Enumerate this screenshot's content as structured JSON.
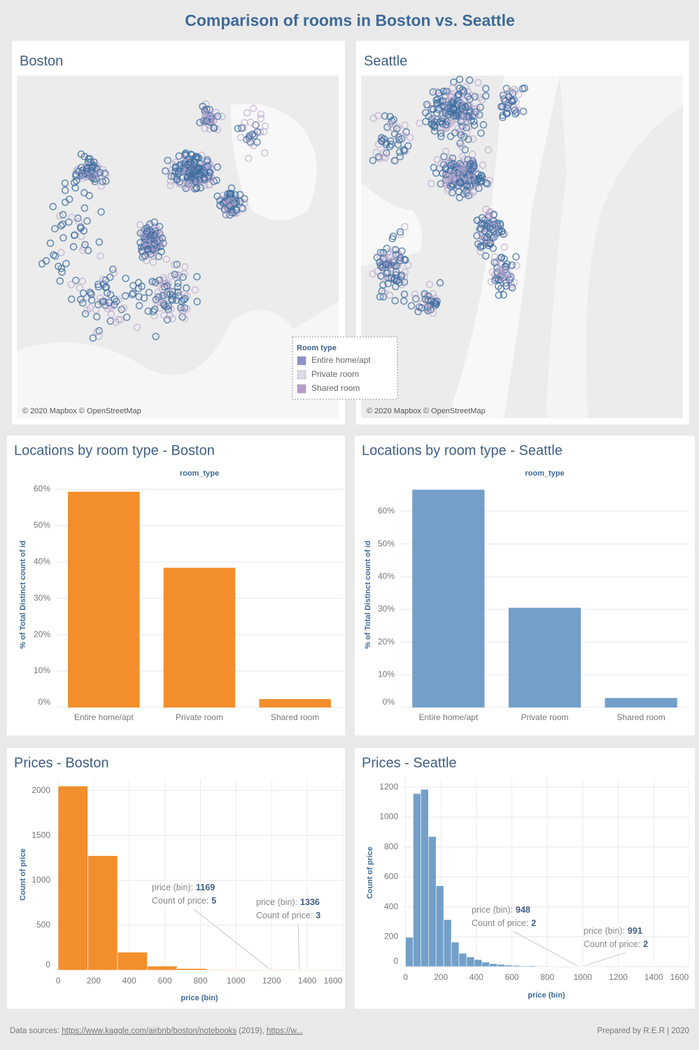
{
  "title": "Comparison of rooms in Boston vs. Seattle",
  "maps": [
    {
      "title": "Boston",
      "attribution": "© 2020 Mapbox © OpenStreetMap"
    },
    {
      "title": "Seattle",
      "attribution": "© 2020 Mapbox © OpenStreetMap"
    }
  ],
  "legend": {
    "title": "Room type",
    "items": [
      {
        "name": "Entire home/apt",
        "color": "#8d91c6"
      },
      {
        "name": "Private room",
        "color": "#dcdbe8"
      },
      {
        "name": "Shared room",
        "color": "#b79cc8"
      }
    ]
  },
  "chart_data": [
    {
      "type": "bar",
      "title": "Locations by room type - Boston",
      "x_label": "room_type",
      "y_label": "% of Total Distinct count of id",
      "categories": [
        "Entire home/apt",
        "Private room",
        "Shared room"
      ],
      "values": [
        59.3,
        38.4,
        2.3
      ],
      "color": "#f28e2b",
      "ylim": [
        0,
        62
      ],
      "yticks": [
        {
          "value": 0,
          "label": "0%"
        },
        {
          "value": 10,
          "label": "10%"
        },
        {
          "value": 20,
          "label": "20%"
        },
        {
          "value": 30,
          "label": "30%"
        },
        {
          "value": 40,
          "label": "40%"
        },
        {
          "value": 50,
          "label": "50%"
        },
        {
          "value": 60,
          "label": "60%"
        }
      ],
      "grid": true
    },
    {
      "type": "bar",
      "title": "Locations by room type - Seattle",
      "x_label": "room_type",
      "y_label": "% of Total Distinct count of id",
      "categories": [
        "Entire home/apt",
        "Private room",
        "Shared room"
      ],
      "values": [
        66.6,
        30.5,
        2.9
      ],
      "color": "#739fc9",
      "ylim": [
        0,
        69
      ],
      "yticks": [
        {
          "value": 0,
          "label": "0%"
        },
        {
          "value": 10,
          "label": "10%"
        },
        {
          "value": 20,
          "label": "20%"
        },
        {
          "value": 30,
          "label": "30%"
        },
        {
          "value": 40,
          "label": "40%"
        },
        {
          "value": 50,
          "label": "50%"
        },
        {
          "value": 60,
          "label": "60%"
        }
      ],
      "grid": true
    },
    {
      "type": "histogram",
      "title": "Prices - Boston",
      "x_label": "price (bin)",
      "y_label": "Count of price",
      "bins": [
        0,
        167,
        334,
        501,
        668,
        835,
        1002,
        1169,
        1336,
        1503
      ],
      "values": [
        2050,
        1275,
        200,
        45,
        18,
        6,
        2,
        5,
        3
      ],
      "color": "#f28e2b",
      "xlim": [
        -12,
        1600
      ],
      "xticks": [
        0,
        200,
        400,
        600,
        800,
        1000,
        1200,
        1400,
        1600
      ],
      "ylim": [
        0,
        2130
      ],
      "yticks": [
        0,
        500,
        1000,
        1500,
        2000
      ],
      "grid": true,
      "annotations": [
        {
          "bin_label": "price (bin):",
          "bin": 1169,
          "count_label": "Count of price:",
          "count": 5
        },
        {
          "bin_label": "price (bin):",
          "bin": 1336,
          "count_label": "Count of price:",
          "count": 3
        }
      ]
    },
    {
      "type": "histogram",
      "title": "Prices - Seattle",
      "x_label": "price (bin)",
      "y_label": "Count of price",
      "bins": [
        0,
        43.1,
        86.2,
        129.3,
        172.4,
        215.5,
        258.6,
        301.7,
        344.8,
        387.9,
        431,
        474.1,
        517.2,
        560.3,
        603.4,
        646.5,
        689.6,
        732.7,
        775.8,
        818.9,
        862,
        905.1,
        948.2,
        991.3,
        1034.4
      ],
      "values": [
        196,
        1157,
        1185,
        870,
        540,
        314,
        164,
        89,
        65,
        47,
        30,
        20,
        15,
        10,
        8,
        5,
        6,
        4,
        3,
        2,
        1,
        1,
        2,
        2
      ],
      "color": "#739fc9",
      "xlim": [
        -10,
        1600
      ],
      "xticks": [
        0,
        200,
        400,
        600,
        800,
        1000,
        1200,
        1400,
        1600
      ],
      "ylim": [
        0,
        1255
      ],
      "yticks": [
        0,
        200,
        400,
        600,
        800,
        1000,
        1200
      ],
      "grid": true,
      "annotations": [
        {
          "bin_label": "price (bin):",
          "bin": 948,
          "count_label": "Count of price:",
          "count": 2
        },
        {
          "bin_label": "price (bin):",
          "bin": 991,
          "count_label": "Count of price:",
          "count": 2
        }
      ]
    }
  ],
  "footer": {
    "prefix": "Data sources: ",
    "link1": "https://www.kaggle.com/airbnb/boston/notebooks",
    "middle": " (2019), ",
    "link2": "https://w...",
    "credit": "Prepared by R.E.R | 2020"
  }
}
